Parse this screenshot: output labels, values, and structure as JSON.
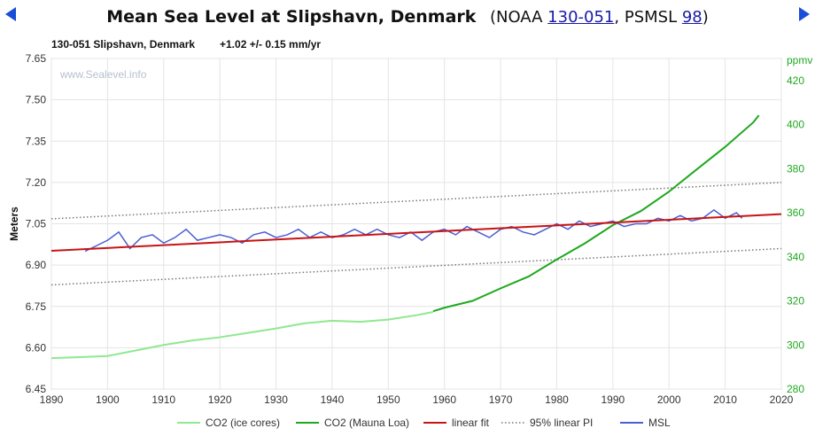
{
  "nav": {
    "prev_icon": "triangle-left-icon",
    "next_icon": "triangle-right-icon"
  },
  "header": {
    "title": "Mean Sea Level at Slipshavn, Denmark",
    "open_paren": "(NOAA",
    "noaa_id": "130-051",
    "psmsl_prefix": ", PSMSL",
    "psmsl_id": "98",
    "close_paren": ")"
  },
  "subheader": {
    "station": "130-051 Slipshavn, Denmark",
    "trend": "+1.02 +/- 0.15 mm/yr"
  },
  "chart_data": {
    "type": "line",
    "watermark": "www.Sealevel.info",
    "ylabel": "Meters",
    "y2label": "ppmv",
    "xlim": [
      1890,
      2020
    ],
    "ylim": [
      6.45,
      7.65
    ],
    "y2lim": [
      280,
      430
    ],
    "x_ticks": [
      1890,
      1900,
      1910,
      1920,
      1930,
      1940,
      1950,
      1960,
      1970,
      1980,
      1990,
      2000,
      2010,
      2020
    ],
    "y_ticks": [
      "6.45",
      "6.60",
      "6.75",
      "6.90",
      "7.05",
      "7.20",
      "7.35",
      "7.50",
      "7.65"
    ],
    "y2_ticks": [
      "280",
      "300",
      "320",
      "340",
      "360",
      "380",
      "400",
      "420"
    ],
    "grid": true,
    "legend_position": "bottom",
    "colors": {
      "co2_ice": "#90e890",
      "co2_mauna": "#1fa81f",
      "linear_fit": "#c81414",
      "pi": "#777777",
      "msl": "#4a5fd0",
      "right_axis": "#1fa81f"
    },
    "series": [
      {
        "name": "CO2 (ice cores)",
        "axis": "right",
        "x": [
          1890,
          1895,
          1900,
          1905,
          1910,
          1915,
          1920,
          1925,
          1930,
          1935,
          1940,
          1945,
          1950,
          1955,
          1958
        ],
        "values": [
          294.0,
          294.5,
          295.0,
          297.5,
          300.0,
          302.0,
          303.5,
          305.5,
          307.5,
          309.8,
          311.0,
          310.5,
          311.5,
          313.5,
          315.0
        ]
      },
      {
        "name": "CO2 (Mauna Loa)",
        "axis": "right",
        "x": [
          1958,
          1960,
          1965,
          1970,
          1975,
          1980,
          1985,
          1990,
          1995,
          2000,
          2005,
          2010,
          2015,
          2016
        ],
        "values": [
          315.3,
          316.9,
          320.0,
          325.7,
          331.1,
          338.8,
          346.1,
          354.4,
          360.8,
          369.6,
          379.8,
          389.9,
          401.0,
          404.2
        ]
      },
      {
        "name": "linear fit",
        "axis": "left",
        "x": [
          1890,
          2020
        ],
        "values": [
          6.952,
          7.085
        ]
      },
      {
        "name": "95% linear PI",
        "axis": "left",
        "upper": {
          "x": [
            1890,
            2020
          ],
          "values": [
            7.068,
            7.2
          ]
        },
        "lower": {
          "x": [
            1890,
            2020
          ],
          "values": [
            6.828,
            6.96
          ]
        }
      },
      {
        "name": "MSL",
        "axis": "left",
        "x": [
          1896,
          1898,
          1900,
          1902,
          1904,
          1906,
          1908,
          1910,
          1912,
          1914,
          1916,
          1918,
          1920,
          1922,
          1924,
          1926,
          1928,
          1930,
          1932,
          1934,
          1936,
          1938,
          1940,
          1942,
          1944,
          1946,
          1948,
          1950,
          1952,
          1954,
          1956,
          1958,
          1960,
          1962,
          1964,
          1966,
          1968,
          1970,
          1972,
          1974,
          1976,
          1978,
          1980,
          1982,
          1984,
          1986,
          1988,
          1990,
          1992,
          1994,
          1996,
          1998,
          2000,
          2002,
          2004,
          2006,
          2008,
          2010,
          2012,
          2013
        ],
        "values": [
          6.95,
          6.97,
          6.99,
          7.02,
          6.96,
          7.0,
          7.01,
          6.98,
          7.0,
          7.03,
          6.99,
          7.0,
          7.01,
          7.0,
          6.98,
          7.01,
          7.02,
          7.0,
          7.01,
          7.03,
          7.0,
          7.02,
          7.0,
          7.01,
          7.03,
          7.01,
          7.03,
          7.01,
          7.0,
          7.02,
          6.99,
          7.02,
          7.03,
          7.01,
          7.04,
          7.02,
          7.0,
          7.03,
          7.04,
          7.02,
          7.01,
          7.03,
          7.05,
          7.03,
          7.06,
          7.04,
          7.05,
          7.06,
          7.04,
          7.05,
          7.05,
          7.07,
          7.06,
          7.08,
          7.06,
          7.07,
          7.1,
          7.07,
          7.09,
          7.07
        ]
      }
    ],
    "legend": [
      {
        "label": "CO2 (ice cores)",
        "style": "solid",
        "color": "#90e890"
      },
      {
        "label": "CO2 (Mauna Loa)",
        "style": "solid",
        "color": "#1fa81f"
      },
      {
        "label": "linear fit",
        "style": "solid",
        "color": "#c81414"
      },
      {
        "label": "95% linear PI",
        "style": "dotted",
        "color": "#777777"
      },
      {
        "label": "MSL",
        "style": "solid",
        "color": "#4a5fd0"
      }
    ]
  }
}
